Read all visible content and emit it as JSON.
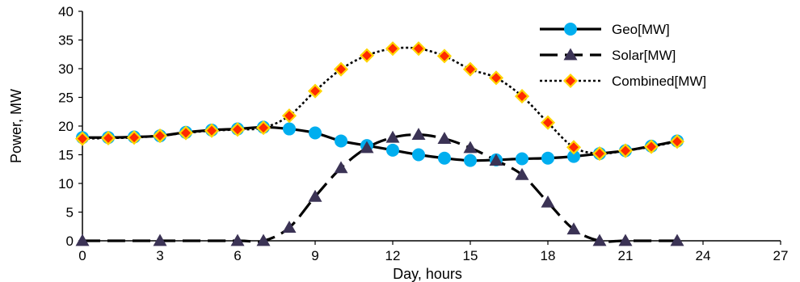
{
  "chart_data": {
    "type": "line",
    "xlabel": "Day, hours",
    "ylabel": "Power, MW",
    "xlim": [
      0,
      27
    ],
    "ylim": [
      0,
      40
    ],
    "x_ticks": [
      "0",
      "3",
      "6",
      "9",
      "12",
      "15",
      "18",
      "21",
      "24",
      "27"
    ],
    "y_ticks": [
      "0",
      "5",
      "10",
      "15",
      "20",
      "25",
      "30",
      "35",
      "40"
    ],
    "grid": false,
    "legend_position": "top-right",
    "series": [
      {
        "name": "Geo[MW]",
        "style": "solid",
        "marker": "circle",
        "color": "#00aeef",
        "x": [
          0,
          1,
          2,
          3,
          4,
          5,
          6,
          7,
          8,
          9,
          10,
          11,
          12,
          13,
          14,
          15,
          16,
          17,
          18,
          19,
          20,
          21,
          22,
          23
        ],
        "values": [
          18.0,
          18.0,
          18.1,
          18.3,
          18.9,
          19.3,
          19.5,
          19.8,
          19.5,
          18.8,
          17.4,
          16.6,
          15.8,
          15.0,
          14.4,
          14.0,
          14.1,
          14.3,
          14.4,
          14.7,
          15.2,
          15.7,
          16.5,
          17.4
        ]
      },
      {
        "name": "Solar[MW]",
        "style": "dashed",
        "marker": "triangle",
        "color": "#3b3355",
        "x": [
          0,
          3,
          6,
          7,
          8,
          9,
          10,
          11,
          12,
          13,
          14,
          15,
          16,
          17,
          18,
          19,
          20,
          21,
          23
        ],
        "values": [
          0,
          0,
          0,
          0,
          2.3,
          7.7,
          12.7,
          16.2,
          18.0,
          18.5,
          17.8,
          16.2,
          14.0,
          11.5,
          6.7,
          2.0,
          0,
          0,
          0
        ]
      },
      {
        "name": "Combined[MW]",
        "style": "dotted",
        "marker": "diamond",
        "color": "#ff2a00",
        "x": [
          0,
          1,
          2,
          3,
          4,
          5,
          6,
          7,
          8,
          9,
          10,
          11,
          12,
          13,
          14,
          15,
          16,
          17,
          18,
          19,
          20,
          21,
          22,
          23
        ],
        "values": [
          17.8,
          17.9,
          18.0,
          18.3,
          18.8,
          19.2,
          19.4,
          19.7,
          21.8,
          26.1,
          29.9,
          32.3,
          33.5,
          33.5,
          32.2,
          29.9,
          28.4,
          25.2,
          20.6,
          16.3,
          15.2,
          15.7,
          16.4,
          17.3
        ]
      }
    ]
  }
}
